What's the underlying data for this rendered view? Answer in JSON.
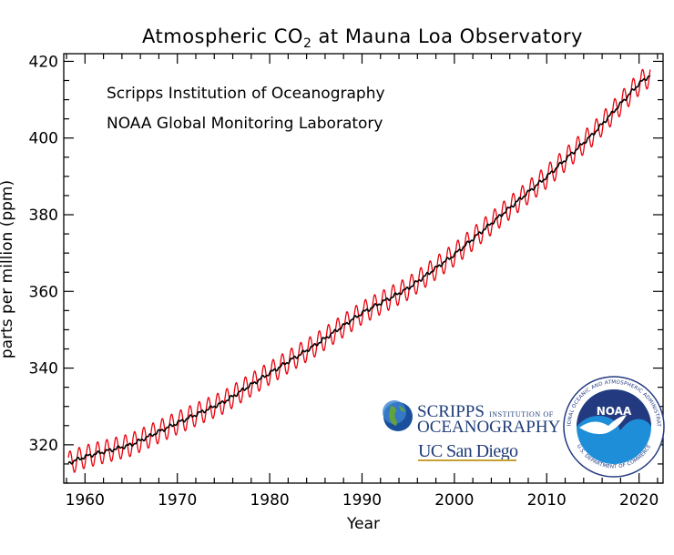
{
  "chart_data": {
    "type": "line",
    "title": "Atmospheric CO",
    "title_subscript": "2",
    "title_suffix": " at Mauna Loa Observatory",
    "xlabel": "Year",
    "ylabel": "parts per million (ppm)",
    "xlim": [
      1957.7,
      2022.6
    ],
    "ylim": [
      310,
      422
    ],
    "x_ticks": [
      1960,
      1970,
      1980,
      1990,
      2000,
      2010,
      2020
    ],
    "y_ticks": [
      320,
      340,
      360,
      380,
      400,
      420
    ],
    "annotations": [
      "Scripps Institution of Oceanography",
      "NOAA Global Monitoring Laboratory"
    ],
    "series": [
      {
        "role": "monthly-mean",
        "color": "#e8000b",
        "seasonal_amplitude_ppm": 3.0,
        "x_range": [
          1958.2,
          2021.2
        ]
      },
      {
        "role": "seasonally-corrected",
        "color": "#000000",
        "x": [
          1958.2,
          1960,
          1965,
          1970,
          1975,
          1980,
          1985,
          1990,
          1995,
          2000,
          2005,
          2010,
          2015,
          2020,
          2021.2
        ],
        "y": [
          315.2,
          316.9,
          320.0,
          325.7,
          331.1,
          338.7,
          346.1,
          354.4,
          360.8,
          369.6,
          379.8,
          389.9,
          401.0,
          414.2,
          416.4
        ]
      }
    ]
  },
  "logos": {
    "scripps_line1": "SCRIPPS",
    "scripps_line1_small": "INSTITUTION OF",
    "scripps_line2": "OCEANOGRAPHY",
    "ucsd": "UC San Diego",
    "noaa": "NOAA",
    "noaa_ring_top": "NATIONAL OCEANIC AND ATMOSPHERIC ADMINISTRATION",
    "noaa_ring_bottom": "U.S. DEPARTMENT OF COMMERCE",
    "colors": {
      "scripps_text": "#1f3c78",
      "ucsd_text": "#1f3c78",
      "ucsd_underline": "#c6a032",
      "noaa_navy": "#233a80",
      "noaa_sky": "#1f8ed8"
    }
  }
}
